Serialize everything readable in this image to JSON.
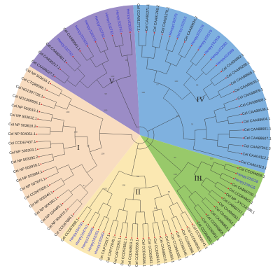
{
  "colors": {
    "clade_I": "#f8dcc0",
    "clade_II": "#fbe8b2",
    "clade_III": "#98c96a",
    "clade_IV": "#7fb1df",
    "clade_V": "#9b8cc6",
    "label_default": "#222222",
    "label_highlight": "#3a3ad0",
    "marker": "#d0262a",
    "branch": "#333333"
  },
  "clades": [
    {
      "id": "V",
      "label": "V",
      "color_key": "clade_V",
      "leaves": [
        {
          "name": "Cel CAA98227.1",
          "hl": false
        },
        {
          "name": "Cel CAA98217.1",
          "hl": false
        },
        {
          "name": "Cel CAA80981.1",
          "hl": false
        },
        {
          "name": "Henpy102742",
          "hl": true
        },
        {
          "name": "Cel CAA80641.1",
          "hl": false
        },
        {
          "name": "Henpy102626",
          "hl": true
        },
        {
          "name": "Henpy106379",
          "hl": true
        },
        {
          "name": "Henpy102780",
          "hl": true
        },
        {
          "name": "Henpy102783",
          "hl": true
        },
        {
          "name": "Henpy102762",
          "hl": true
        },
        {
          "name": "Henpy102820",
          "hl": true
        }
      ]
    },
    {
      "id": "IV",
      "label": "IV",
      "color_key": "clade_IV",
      "leaves": [
        {
          "name": "Cel CCA91272.1",
          "hl": false
        },
        {
          "name": "Cel CAA91271.1",
          "hl": false
        },
        {
          "name": "Cel CAA91269.2",
          "hl": false
        },
        {
          "name": "Cel CAA91270.1",
          "hl": false
        },
        {
          "name": "Henpy102575",
          "hl": true
        },
        {
          "name": "Henpy102512",
          "hl": true
        },
        {
          "name": "Cel CAA80634.2",
          "hl": false
        },
        {
          "name": "Henpy102578",
          "hl": true
        },
        {
          "name": "Henpy102579",
          "hl": true
        },
        {
          "name": "Henpy102518",
          "hl": true
        },
        {
          "name": "Henpy102583",
          "hl": true
        },
        {
          "name": "Henpy102589",
          "hl": true
        },
        {
          "name": "Cel CAA94582.1",
          "hl": false
        },
        {
          "name": "Cel CAA95208.1",
          "hl": false
        },
        {
          "name": "Cel CAA88605.1",
          "hl": false
        },
        {
          "name": "Cel CAA88603.1",
          "hl": false
        },
        {
          "name": "Cel CAA88609.1",
          "hl": false
        },
        {
          "name": "Cel CAA88608.1",
          "hl": false
        },
        {
          "name": "Cel CAA88606.1",
          "hl": false
        },
        {
          "name": "Cel CAA88604.1",
          "hl": false
        },
        {
          "name": "Cel CAA88601.1",
          "hl": false
        },
        {
          "name": "Cel CAA88607.1",
          "hl": false
        },
        {
          "name": "Cel CAA87042.3",
          "hl": false
        },
        {
          "name": "Cel CAA04112.1",
          "hl": false
        },
        {
          "name": "Cel CAA04113.1",
          "hl": false
        }
      ]
    },
    {
      "id": "III",
      "label": "III",
      "color_key": "clade_III",
      "leaves": [
        {
          "name": "Cel CCD64858.1",
          "hl": false
        },
        {
          "name": "Henpy109218",
          "hl": true
        },
        {
          "name": "Henpy109425",
          "hl": true
        },
        {
          "name": "Cel CAB60700.1",
          "hl": false
        },
        {
          "name": "Cel CCD64863.1",
          "hl": false
        },
        {
          "name": "Cel NP_VYC12398.1",
          "hl": false
        },
        {
          "name": "Cel CAB60717.1",
          "hl": false
        },
        {
          "name": "Cel CAA94552.1",
          "hl": false
        },
        {
          "name": "Cel CAA96552.1",
          "hl": false
        },
        {
          "name": "Cel CAA96853.1",
          "hl": false
        },
        {
          "name": "Cel CCD60858.1",
          "hl": false
        },
        {
          "name": "Cel CCD60811.1",
          "hl": false
        },
        {
          "name": "Cel CCD64851.1",
          "hl": false
        }
      ]
    },
    {
      "id": "II",
      "label": "II",
      "color_key": "clade_II",
      "leaves": [
        {
          "name": "Cel CCD68141.1",
          "hl": false
        },
        {
          "name": "Cel CCD64803.1",
          "hl": false
        },
        {
          "name": "Cel CCD65388.1",
          "hl": false
        },
        {
          "name": "Cel CCD65346.1",
          "hl": false
        },
        {
          "name": "Cel CCD66305.1",
          "hl": false
        },
        {
          "name": "Cel CCD60366.1",
          "hl": false
        },
        {
          "name": "Cel CAA98210.1",
          "hl": false
        },
        {
          "name": "Cel CCD63614.1",
          "hl": false
        },
        {
          "name": "Cel CCD63581.1",
          "hl": false
        },
        {
          "name": "Cel CCD63586.1",
          "hl": false
        },
        {
          "name": "Cel CCD63558.1",
          "hl": false
        },
        {
          "name": "Cel CCD64819.1",
          "hl": false
        },
        {
          "name": "Cel CCD63582.1",
          "hl": false
        },
        {
          "name": "Cel CAP72055.1",
          "hl": false
        },
        {
          "name": "Cel CAP72045.1",
          "hl": false
        },
        {
          "name": "Cel CAP72017.1",
          "hl": false
        },
        {
          "name": "Henpy103349",
          "hl": true
        },
        {
          "name": "Henpy103351",
          "hl": true
        },
        {
          "name": "Henpy103348",
          "hl": true
        },
        {
          "name": "Henpy104747",
          "hl": true
        },
        {
          "name": "Henpy104791",
          "hl": true
        },
        {
          "name": "Cel CCD67688.1",
          "hl": false
        }
      ]
    },
    {
      "id": "I",
      "label": "I",
      "color_key": "clade_I",
      "leaves": [
        {
          "name": "Cel CCD67688.1",
          "hl": false
        },
        {
          "name": "Cel NP 504470.2",
          "hl": false
        },
        {
          "name": "Cel NP 504499.1",
          "hl": false
        },
        {
          "name": "Cel NP 504350.1",
          "hl": false
        },
        {
          "name": "Cel NP 505040.1",
          "hl": false
        },
        {
          "name": "Cel CCD67850.1",
          "hl": false
        },
        {
          "name": "Cel NP 507676.1",
          "hl": false
        },
        {
          "name": "Cel NP 503984.1",
          "hl": false
        },
        {
          "name": "Cel NP 502938.1",
          "hl": false
        },
        {
          "name": "Cel NP 503392.2",
          "hl": false
        },
        {
          "name": "Cel NP 505303.1",
          "hl": false
        },
        {
          "name": "Cel CCD67437.1",
          "hl": false
        },
        {
          "name": "Cel NP 504051.1",
          "hl": false
        },
        {
          "name": "Cel NP 503618.2",
          "hl": false
        },
        {
          "name": "Cel NP 503612.1",
          "hl": false
        },
        {
          "name": "Cel NP 503615.1",
          "hl": false
        },
        {
          "name": "Cel NO1368585.1",
          "hl": false
        },
        {
          "name": "Cel NO1307728.1",
          "hl": false
        },
        {
          "name": "Cel CTQ86568.1",
          "hl": false
        },
        {
          "name": "Cel NP 503616.1",
          "hl": false
        }
      ]
    }
  ],
  "bootstrap_values": [
    "100",
    "98",
    "100",
    "95",
    "100",
    "87",
    "100",
    "99",
    "100",
    "76",
    "100",
    "100",
    "92",
    "100",
    "65",
    "100",
    "88",
    "100",
    "100",
    "97",
    "100",
    "84",
    "100",
    "100"
  ]
}
